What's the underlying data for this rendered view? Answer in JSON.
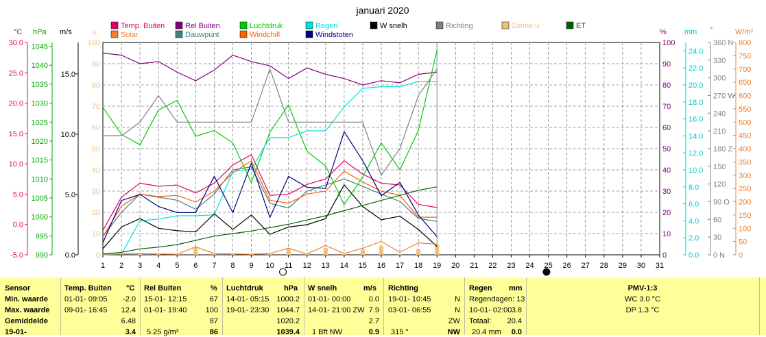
{
  "title": "januari 2020",
  "legend": [
    {
      "label": "Temp. Buiten",
      "color": "#e0006a"
    },
    {
      "label": "Rel Buiten",
      "color": "#800080"
    },
    {
      "label": "Luchtdruk",
      "color": "#00cc00"
    },
    {
      "label": "Regen",
      "color": "#00e0e0"
    },
    {
      "label": "W snelh",
      "color": "#000000"
    },
    {
      "label": "Richting",
      "color": "#808080"
    },
    {
      "label": "Zonne u",
      "color": "#f0c080"
    },
    {
      "label": "ET",
      "color": "#006000"
    },
    {
      "label": "Solar",
      "color": "#f08030"
    },
    {
      "label": "Dauwpunt",
      "color": "#408080"
    },
    {
      "label": "Windchill",
      "color": "#ff6000"
    },
    {
      "label": "Windstoten",
      "color": "#000080"
    }
  ],
  "axes_units": {
    "temp": "°C",
    "hpa": "hPa",
    "ms": "m/s",
    "u": "u",
    "pct": "%",
    "mm": "mm",
    "deg": "°",
    "wm2": "W/m²"
  },
  "axes": {
    "temp": {
      "ticks": [
        "30.0",
        "25.0",
        "20.0",
        "15.0",
        "10.0",
        "5.0",
        "0.0",
        "-5.0"
      ],
      "color": "#e0006a"
    },
    "hpa": {
      "ticks": [
        "1045",
        "1040",
        "1035",
        "1030",
        "1025",
        "1020",
        "1015",
        "1010",
        "1005",
        "1000",
        "995",
        "990"
      ],
      "color": "#00aa00"
    },
    "ms": {
      "ticks": [
        "15.0",
        "10.0",
        "5.0",
        "0.0"
      ],
      "color": "#000000"
    },
    "u": {
      "ticks": [
        "100",
        "90",
        "80",
        "70",
        "60",
        "50",
        "40",
        "30",
        "20",
        "10",
        "0"
      ],
      "color": "#f0c080"
    },
    "pct": {
      "ticks": [
        "100",
        "90",
        "80",
        "70",
        "60",
        "50",
        "40",
        "30",
        "20",
        "10",
        "0"
      ],
      "color": "#800080"
    },
    "mm": {
      "ticks": [
        "24.0",
        "22.0",
        "20.0",
        "18.0",
        "16.0",
        "14.0",
        "12.0",
        "10.0",
        "8.0",
        "6.0",
        "4.0",
        "2.0",
        "0.0"
      ],
      "color": "#00cccc"
    },
    "deg": {
      "ticks": [
        "360 N",
        "330",
        "300",
        "270 W",
        "240",
        "210",
        "180 Z",
        "150",
        "120",
        "90 O",
        "60",
        "30",
        "0 N"
      ],
      "color": "#808080"
    },
    "wm2": {
      "ticks": [
        "800",
        "750",
        "700",
        "650",
        "600",
        "550",
        "500",
        "450",
        "400",
        "350",
        "300",
        "250",
        "200",
        "150",
        "100",
        "50",
        "0"
      ],
      "color": "#f08030"
    }
  },
  "days": [
    "1",
    "2",
    "3",
    "4",
    "5",
    "6",
    "7",
    "8",
    "9",
    "10",
    "11",
    "12",
    "13",
    "14",
    "15",
    "16",
    "17",
    "18",
    "19",
    "20",
    "21",
    "22",
    "23",
    "24",
    "25",
    "26",
    "27",
    "28",
    "29",
    "30",
    "31"
  ],
  "chart_data": {
    "type": "line",
    "title": "januari 2020",
    "x_label": "",
    "xlim": [
      1,
      31
    ],
    "series": [
      {
        "name": "Temp. Buiten",
        "unit": "°C",
        "ylim": [
          -5,
          30
        ],
        "x": [
          1,
          2,
          3,
          4,
          5,
          6,
          7,
          8,
          9,
          10,
          11,
          12,
          13,
          14,
          15,
          16,
          17,
          18,
          19
        ],
        "values": [
          -1.0,
          4.5,
          6.8,
          6.3,
          6.5,
          5.2,
          6.8,
          9.8,
          11.5,
          4.8,
          5.0,
          6.6,
          7.5,
          10.5,
          8.3,
          6.8,
          6.5,
          3.3,
          2.8
        ]
      },
      {
        "name": "Dauwpunt",
        "unit": "°C",
        "ylim": [
          -5,
          30
        ],
        "x": [
          1,
          2,
          3,
          4,
          5,
          6,
          7,
          8,
          9,
          10,
          11,
          12,
          13,
          14,
          15,
          16,
          17,
          18,
          19
        ],
        "values": [
          -2.0,
          2.0,
          5.0,
          4.5,
          4.0,
          2.5,
          5.0,
          9.0,
          9.5,
          3.5,
          2.7,
          5.5,
          6.5,
          7.5,
          6.3,
          5.0,
          3.8,
          1.0,
          0.5
        ]
      },
      {
        "name": "Windchill",
        "unit": "°C",
        "ylim": [
          -5,
          30
        ],
        "x": [
          1,
          2,
          3,
          4,
          5,
          6,
          7,
          8,
          9,
          10,
          11,
          12,
          13,
          14,
          15,
          16,
          17,
          18,
          19
        ],
        "values": [
          -2.0,
          3.0,
          5.0,
          4.6,
          4.8,
          3.7,
          5.5,
          8.5,
          10.5,
          4.0,
          3.5,
          5.0,
          5.5,
          8.8,
          7.0,
          5.5,
          4.8,
          1.2,
          1.2
        ]
      },
      {
        "name": "Rel Buiten",
        "unit": "%",
        "ylim": [
          0,
          100
        ],
        "x": [
          1,
          2,
          3,
          4,
          5,
          6,
          7,
          8,
          9,
          10,
          11,
          12,
          13,
          14,
          15,
          16,
          17,
          18,
          19
        ],
        "values": [
          95,
          94,
          90,
          91,
          86,
          82,
          87,
          94,
          91,
          89,
          83,
          88,
          85,
          83,
          80,
          82,
          81,
          85,
          86
        ]
      },
      {
        "name": "Luchtdruk",
        "unit": "hPa",
        "ylim": [
          990,
          1045
        ],
        "x": [
          1,
          2,
          3,
          4,
          5,
          6,
          7,
          8,
          9,
          10,
          11,
          12,
          13,
          14,
          15,
          16,
          17,
          18,
          19
        ],
        "values": [
          1028.2,
          1021.2,
          1018.5,
          1027.5,
          1030.0,
          1020.7,
          1022.2,
          1019.0,
          1008.7,
          1021.8,
          1028.8,
          1016.8,
          1013.0,
          1003.0,
          1010.2,
          1019.0,
          1012.0,
          1022.2,
          1043.0
        ]
      },
      {
        "name": "Regen",
        "unit": "mm",
        "ylim": [
          0,
          25
        ],
        "x": [
          1,
          2,
          3,
          4,
          5,
          6,
          7,
          8,
          9,
          10,
          11,
          12,
          13,
          14,
          15,
          16,
          17,
          18,
          19
        ],
        "values": [
          0.0,
          0.1,
          4.0,
          4.2,
          4.6,
          4.6,
          4.7,
          9.8,
          10.1,
          13.8,
          13.8,
          14.6,
          14.6,
          17.4,
          19.6,
          19.8,
          19.8,
          20.4,
          20.4
        ]
      },
      {
        "name": "W snelh",
        "unit": "m/s",
        "ylim": [
          0,
          17.6
        ],
        "x": [
          1,
          2,
          3,
          4,
          5,
          6,
          7,
          8,
          9,
          10,
          11,
          12,
          13,
          14,
          15,
          16,
          17,
          18,
          19
        ],
        "values": [
          0.5,
          2.3,
          3.0,
          2.2,
          2.0,
          1.9,
          3.4,
          2.1,
          3.3,
          1.7,
          2.3,
          2.5,
          3.0,
          5.8,
          4.0,
          2.9,
          3.2,
          2.1,
          0.7
        ]
      },
      {
        "name": "Windstoten",
        "unit": "m/s",
        "ylim": [
          0,
          17.6
        ],
        "x": [
          1,
          2,
          3,
          4,
          5,
          6,
          7,
          8,
          9,
          10,
          11,
          12,
          13,
          14,
          15,
          16,
          17,
          18,
          19
        ],
        "values": [
          1.0,
          4.5,
          5.0,
          4.0,
          3.5,
          3.5,
          6.5,
          3.5,
          7.6,
          3.1,
          6.5,
          5.6,
          5.5,
          10.2,
          7.8,
          4.9,
          6.0,
          3.3,
          1.5
        ]
      },
      {
        "name": "Richting",
        "unit": "°",
        "ylim": [
          0,
          360
        ],
        "x": [
          1,
          2,
          3,
          4,
          5,
          6,
          7,
          8,
          9,
          10,
          11,
          12,
          13,
          14,
          15,
          16,
          17,
          18,
          19
        ],
        "values": [
          202,
          202,
          225,
          270,
          225,
          225,
          225,
          225,
          225,
          315,
          225,
          225,
          225,
          225,
          225,
          135,
          180,
          270,
          315
        ]
      },
      {
        "name": "Solar",
        "unit": "W/m²",
        "ylim": [
          0,
          800
        ],
        "x": [
          1,
          2,
          3,
          4,
          5,
          6,
          7,
          8,
          9,
          10,
          11,
          12,
          13,
          14,
          15,
          16,
          17,
          18,
          19
        ],
        "values": [
          2,
          3,
          5,
          3,
          2,
          30,
          5,
          3,
          2,
          5,
          25,
          3,
          35,
          5,
          25,
          50,
          10,
          45,
          40
        ]
      },
      {
        "name": "ET",
        "unit": "mm",
        "ylim": [
          0,
          25
        ],
        "x": [
          1,
          2,
          3,
          4,
          5,
          6,
          7,
          8,
          9,
          10,
          11,
          12,
          13,
          14,
          15,
          16,
          17,
          18,
          19
        ],
        "values": [
          0.1,
          0.3,
          0.7,
          0.9,
          1.2,
          1.7,
          2.2,
          2.5,
          2.8,
          3.2,
          3.6,
          4.1,
          4.6,
          5.2,
          5.8,
          6.4,
          7.0,
          7.6,
          8.0
        ]
      },
      {
        "name": "Zonne u",
        "unit": "u",
        "ylim": [
          0,
          100
        ],
        "x": [
          1,
          2,
          3,
          4,
          5,
          6,
          7,
          8,
          9,
          10,
          11,
          12,
          13,
          14,
          15,
          16,
          17,
          18,
          19
        ],
        "values": [
          0.2,
          0.1,
          0.3,
          0.3,
          0.4,
          3.5,
          0.5,
          0.3,
          0.3,
          0.4,
          3.0,
          0.4,
          3.3,
          0.3,
          2.5,
          4.2,
          0.6,
          2.7,
          4.8
        ]
      }
    ],
    "moon_markers": [
      {
        "day": "10.7",
        "phase": "full"
      },
      {
        "day": "24.9",
        "phase": "new"
      }
    ]
  },
  "table": {
    "row_labels": [
      "Sensor",
      "Min. waarde",
      "Max. waarde",
      "Gemiddelde",
      "19-01-"
    ],
    "temp": {
      "header": "Temp. Buiten",
      "unit": "°C",
      "min_t": "01-01- 09:05",
      "min_v": "-2.0",
      "max_t": "09-01- 16:45",
      "max_v": "12.4",
      "avg": "6.48",
      "cur": "3.4"
    },
    "rh": {
      "header": "Rel Buiten",
      "unit": "%",
      "min_t": "15-01- 12:15",
      "min_v": "67",
      "max_t": "01-01- 19:40",
      "max_v": "100",
      "avg": "87",
      "cur_extra": "5.25 g/m³",
      "cur": "86"
    },
    "hpa": {
      "header": "Luchtdruk",
      "unit": "hPa",
      "min_t": "14-01- 05:15",
      "min_v": "1000.2",
      "max_t": "19-01- 23:30",
      "max_v": "1044.7",
      "avg": "1020.2",
      "cur": "1039.4"
    },
    "wind": {
      "header": "W snelh",
      "unit": "m/s",
      "min_t": "01-01- 00:00",
      "min_v": "0.0",
      "max_t": "14-01- 21:00 ZW",
      "max_v": "7.9",
      "avg": "2.7",
      "cur_extra": "1 Bft NW",
      "cur": "0.9"
    },
    "dir": {
      "header": "Richting",
      "min_t": "19-01- 10:45",
      "min_v": "N",
      "max_t": "03-01- 06:55",
      "max_v": "N",
      "avg": "ZW",
      "cur_extra": "315 °",
      "cur": "NW"
    },
    "rain": {
      "header": "Regen",
      "unit": "mm",
      "min_t": "Regendagen: 13",
      "max_t": "10-01- 02:00",
      "max_v": "3.8",
      "avg_t": "Totaal:",
      "avg": "20.4",
      "cur_extra": "20.4 mm",
      "cur": "0.0"
    },
    "pmv": {
      "header": "PMV-1:3",
      "l1": "WC 3.0 °C",
      "l2": "DP 1.3 °C"
    }
  }
}
